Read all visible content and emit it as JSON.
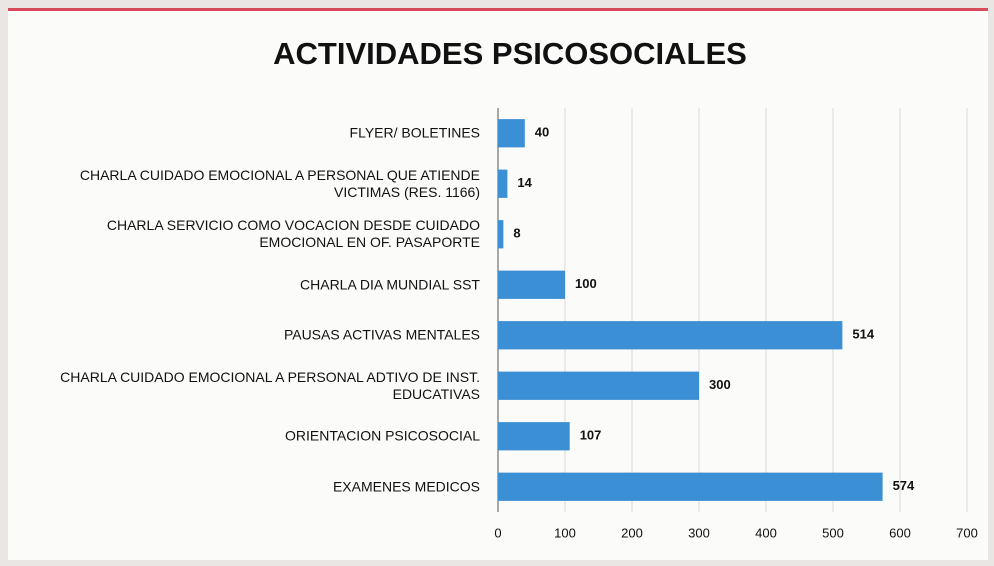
{
  "chart_data": {
    "type": "barh",
    "title": "ACTIVIDADES PSICOSOCIALES",
    "categories": [
      "FLYER/ BOLETINES",
      "CHARLA CUIDADO EMOCIONAL A PERSONAL QUE ATIENDE VICTIMAS (RES. 1166)",
      "CHARLA  SERVICIO COMO VOCACION DESDE CUIDADO EMOCIONAL EN OF. PASAPORTE",
      "CHARLA DIA MUNDIAL SST",
      "PAUSAS ACTIVAS MENTALES",
      "CHARLA CUIDADO EMOCIONAL A PERSONAL ADTIVO DE INST. EDUCATIVAS",
      "ORIENTACION PSICOSOCIAL",
      "EXAMENES MEDICOS"
    ],
    "values": [
      40,
      14,
      8,
      100,
      514,
      300,
      107,
      574
    ],
    "color": "#3b8fd4",
    "xlim": [
      0,
      700
    ],
    "xticks": [
      0,
      100,
      200,
      300,
      400,
      500,
      600,
      700
    ]
  }
}
